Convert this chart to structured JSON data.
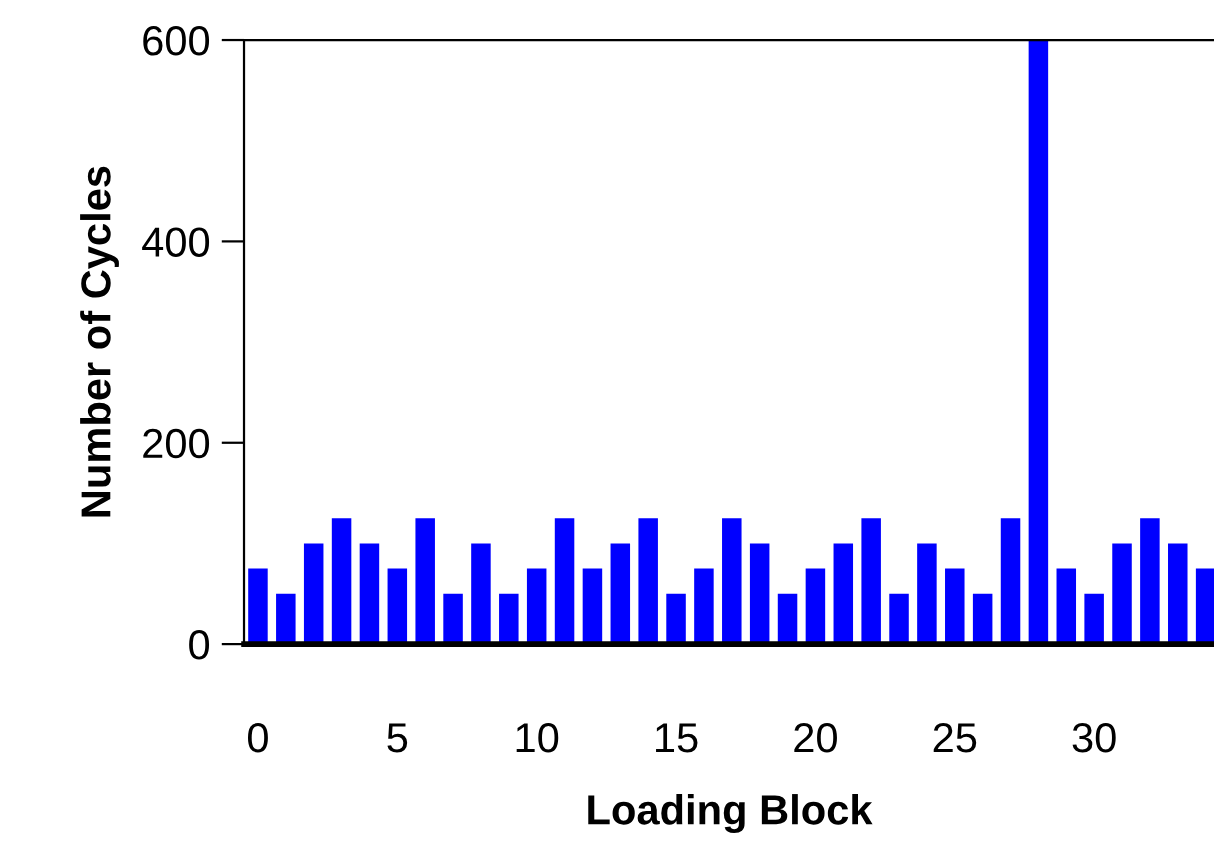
{
  "chart_data": {
    "type": "bar",
    "xlabel": "Loading Block",
    "ylabel": "Number of Cycles",
    "x": [
      0,
      1,
      2,
      3,
      4,
      5,
      6,
      7,
      8,
      9,
      10,
      11,
      12,
      13,
      14,
      15,
      16,
      17,
      18,
      19,
      20,
      21,
      22,
      23,
      24,
      25,
      26,
      27,
      28,
      29,
      30,
      31,
      32,
      33,
      34
    ],
    "values": [
      75,
      50,
      100,
      125,
      100,
      75,
      125,
      50,
      100,
      50,
      75,
      125,
      75,
      100,
      125,
      50,
      75,
      125,
      100,
      50,
      75,
      100,
      125,
      50,
      100,
      75,
      50,
      125,
      600,
      75,
      50,
      100,
      125,
      100,
      75
    ],
    "color": "#0000ff",
    "xlim": [
      -0.5,
      34.3
    ],
    "xticks": [
      0,
      5,
      10,
      15,
      20,
      25,
      30
    ],
    "ylim": [
      0,
      600
    ],
    "yticks": [
      0,
      200,
      400,
      600
    ],
    "grid": false,
    "legend": false
  }
}
